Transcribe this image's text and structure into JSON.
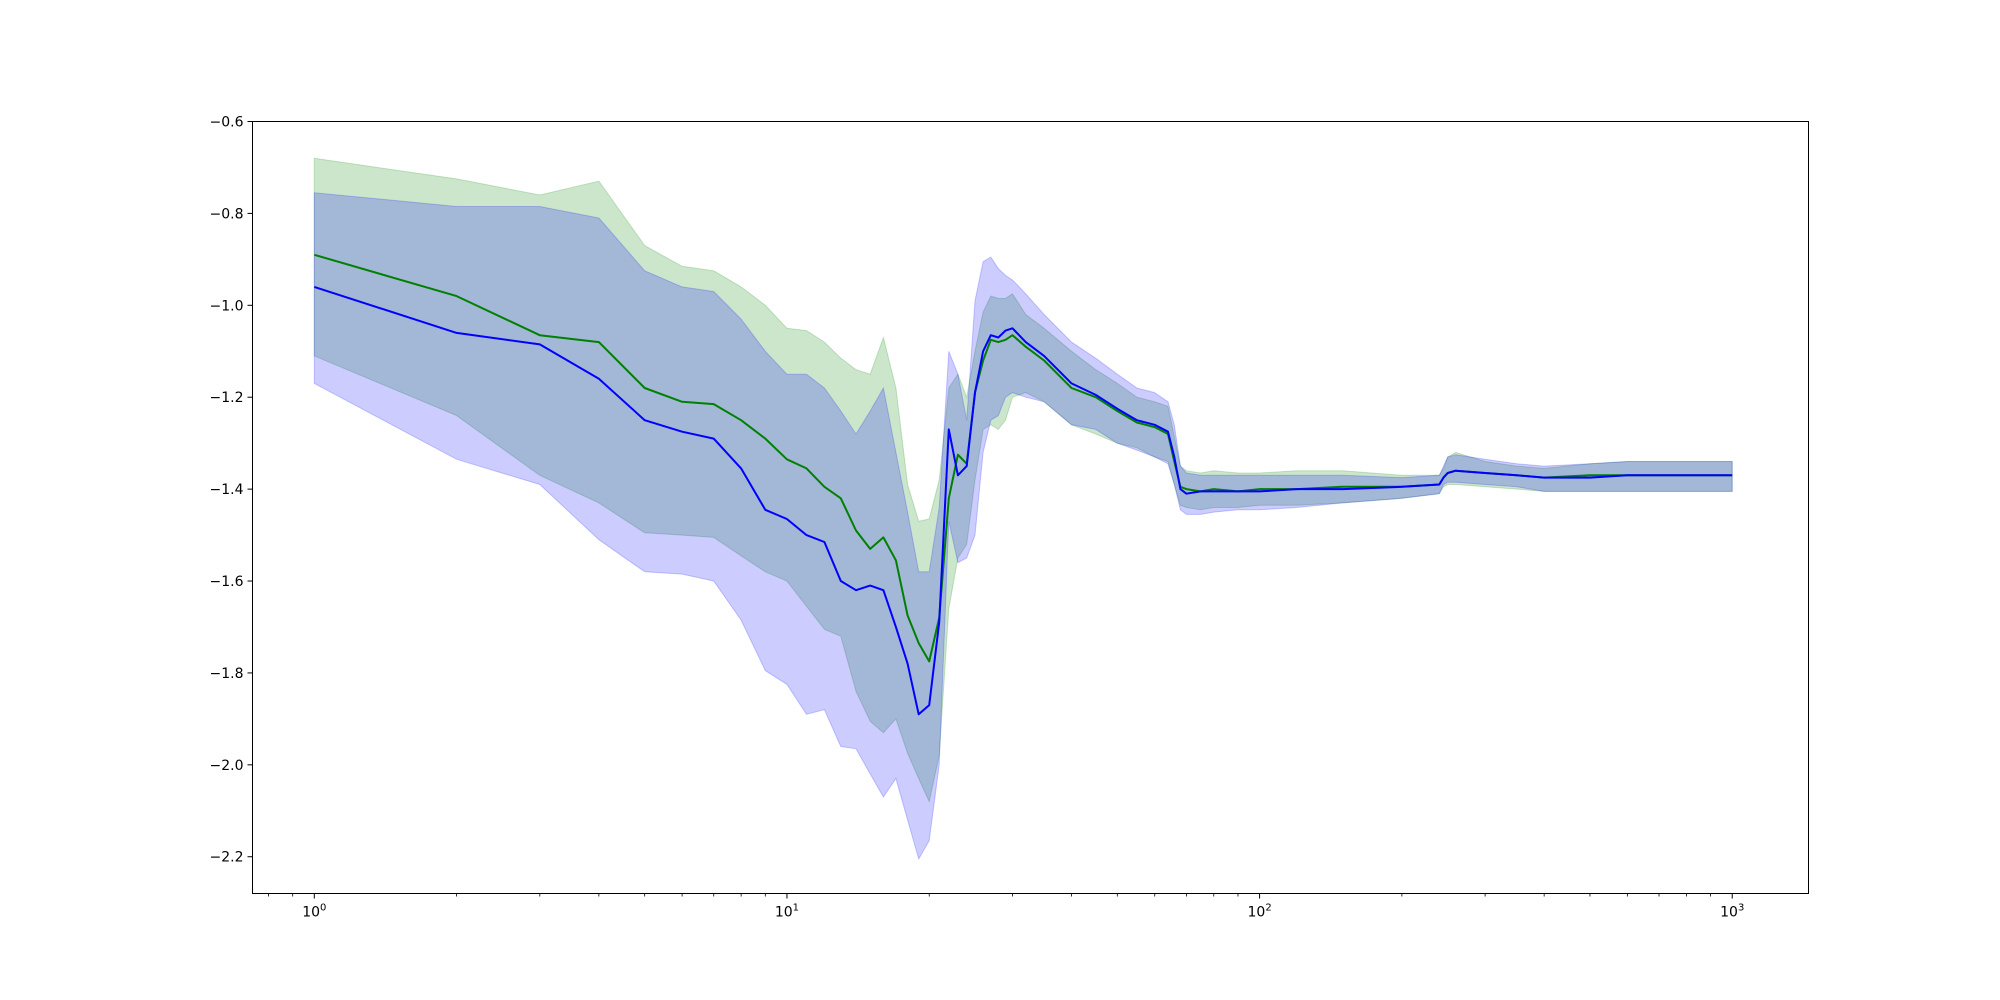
{
  "chart_data": {
    "type": "line",
    "xscale": "log",
    "xlim": [
      0.74,
      1450
    ],
    "ylim": [
      -2.28,
      -0.6
    ],
    "grid": false,
    "legend": "none",
    "x_ticks": [
      {
        "value": 1,
        "base": "10",
        "exp": "0"
      },
      {
        "value": 10,
        "base": "10",
        "exp": "1"
      },
      {
        "value": 100,
        "base": "10",
        "exp": "2"
      },
      {
        "value": 1000,
        "base": "10",
        "exp": "3"
      }
    ],
    "y_ticks": [
      {
        "value": -0.6,
        "label": "−0.6"
      },
      {
        "value": -0.8,
        "label": "−0.8"
      },
      {
        "value": -1.0,
        "label": "−1.0"
      },
      {
        "value": -1.2,
        "label": "−1.2"
      },
      {
        "value": -1.4,
        "label": "−1.4"
      },
      {
        "value": -1.6,
        "label": "−1.6"
      },
      {
        "value": -1.8,
        "label": "−1.8"
      },
      {
        "value": -2.0,
        "label": "−2.0"
      },
      {
        "value": -2.2,
        "label": "−2.2"
      }
    ],
    "series": [
      {
        "color": "#008000",
        "band_color": "#008000",
        "band_opacity": 0.2,
        "x": [
          1,
          2,
          3,
          4,
          5,
          6,
          7,
          8,
          9,
          10,
          11,
          12,
          13,
          14,
          15,
          16,
          17,
          18,
          19,
          20,
          21,
          22,
          23,
          24,
          25,
          26,
          27,
          28,
          29,
          30,
          32,
          35,
          40,
          45,
          50,
          55,
          60,
          64,
          66,
          68,
          70,
          75,
          80,
          90,
          100,
          120,
          150,
          200,
          240,
          245,
          250,
          260,
          300,
          350,
          400,
          500,
          600,
          700,
          800,
          1000
        ],
        "y": [
          -0.89,
          -0.98,
          -1.065,
          -1.08,
          -1.18,
          -1.21,
          -1.215,
          -1.25,
          -1.29,
          -1.335,
          -1.355,
          -1.395,
          -1.42,
          -1.49,
          -1.53,
          -1.505,
          -1.555,
          -1.675,
          -1.735,
          -1.775,
          -1.68,
          -1.42,
          -1.325,
          -1.345,
          -1.19,
          -1.12,
          -1.075,
          -1.08,
          -1.075,
          -1.065,
          -1.09,
          -1.12,
          -1.18,
          -1.2,
          -1.23,
          -1.255,
          -1.265,
          -1.28,
          -1.34,
          -1.395,
          -1.4,
          -1.405,
          -1.4,
          -1.405,
          -1.4,
          -1.4,
          -1.395,
          -1.395,
          -1.39,
          -1.375,
          -1.365,
          -1.36,
          -1.365,
          -1.37,
          -1.375,
          -1.37,
          -1.37,
          -1.37,
          -1.37,
          -1.37
        ],
        "upper": [
          -0.68,
          -0.725,
          -0.76,
          -0.73,
          -0.87,
          -0.915,
          -0.925,
          -0.96,
          -1.0,
          -1.05,
          -1.055,
          -1.08,
          -1.115,
          -1.14,
          -1.15,
          -1.07,
          -1.18,
          -1.39,
          -1.47,
          -1.465,
          -1.38,
          -1.18,
          -1.15,
          -1.2,
          -1.1,
          -1.015,
          -0.98,
          -0.985,
          -0.985,
          -0.975,
          -1.02,
          -1.05,
          -1.1,
          -1.14,
          -1.17,
          -1.2,
          -1.21,
          -1.22,
          -1.285,
          -1.35,
          -1.36,
          -1.365,
          -1.36,
          -1.365,
          -1.365,
          -1.36,
          -1.36,
          -1.37,
          -1.37,
          -1.355,
          -1.33,
          -1.32,
          -1.34,
          -1.35,
          -1.355,
          -1.345,
          -1.34,
          -1.34,
          -1.34,
          -1.34
        ],
        "lower": [
          -1.11,
          -1.24,
          -1.37,
          -1.43,
          -1.495,
          -1.5,
          -1.505,
          -1.545,
          -1.58,
          -1.6,
          -1.655,
          -1.705,
          -1.72,
          -1.84,
          -1.905,
          -1.93,
          -1.9,
          -1.975,
          -2.03,
          -2.08,
          -1.98,
          -1.66,
          -1.55,
          -1.52,
          -1.38,
          -1.27,
          -1.26,
          -1.27,
          -1.25,
          -1.2,
          -1.19,
          -1.21,
          -1.26,
          -1.28,
          -1.3,
          -1.31,
          -1.33,
          -1.34,
          -1.39,
          -1.435,
          -1.44,
          -1.445,
          -1.44,
          -1.44,
          -1.435,
          -1.435,
          -1.43,
          -1.42,
          -1.41,
          -1.395,
          -1.39,
          -1.39,
          -1.395,
          -1.4,
          -1.405,
          -1.405,
          -1.405,
          -1.405,
          -1.405,
          -1.405
        ]
      },
      {
        "color": "#0000ff",
        "band_color": "#0000ff",
        "band_opacity": 0.2,
        "x": [
          1,
          2,
          3,
          4,
          5,
          6,
          7,
          8,
          9,
          10,
          11,
          12,
          13,
          14,
          15,
          16,
          17,
          18,
          19,
          20,
          21,
          22,
          23,
          24,
          25,
          26,
          27,
          28,
          29,
          30,
          32,
          35,
          40,
          45,
          50,
          55,
          60,
          64,
          66,
          68,
          70,
          75,
          80,
          90,
          100,
          120,
          150,
          200,
          240,
          245,
          250,
          260,
          300,
          350,
          400,
          500,
          600,
          700,
          800,
          1000
        ],
        "y": [
          -0.96,
          -1.06,
          -1.085,
          -1.16,
          -1.25,
          -1.275,
          -1.29,
          -1.355,
          -1.445,
          -1.465,
          -1.5,
          -1.515,
          -1.6,
          -1.62,
          -1.61,
          -1.62,
          -1.7,
          -1.78,
          -1.89,
          -1.87,
          -1.69,
          -1.27,
          -1.37,
          -1.35,
          -1.19,
          -1.1,
          -1.065,
          -1.07,
          -1.055,
          -1.05,
          -1.08,
          -1.11,
          -1.17,
          -1.195,
          -1.225,
          -1.25,
          -1.26,
          -1.275,
          -1.33,
          -1.4,
          -1.41,
          -1.405,
          -1.405,
          -1.405,
          -1.405,
          -1.4,
          -1.4,
          -1.395,
          -1.39,
          -1.375,
          -1.365,
          -1.36,
          -1.365,
          -1.37,
          -1.375,
          -1.375,
          -1.37,
          -1.37,
          -1.37,
          -1.37
        ],
        "upper": [
          -0.755,
          -0.785,
          -0.785,
          -0.81,
          -0.925,
          -0.96,
          -0.97,
          -1.03,
          -1.1,
          -1.15,
          -1.15,
          -1.18,
          -1.23,
          -1.28,
          -1.23,
          -1.18,
          -1.32,
          -1.45,
          -1.58,
          -1.58,
          -1.44,
          -1.1,
          -1.15,
          -1.25,
          -0.99,
          -0.905,
          -0.895,
          -0.92,
          -0.935,
          -0.945,
          -0.975,
          -1.02,
          -1.08,
          -1.115,
          -1.15,
          -1.18,
          -1.19,
          -1.21,
          -1.26,
          -1.35,
          -1.365,
          -1.37,
          -1.37,
          -1.37,
          -1.37,
          -1.37,
          -1.37,
          -1.375,
          -1.37,
          -1.35,
          -1.33,
          -1.325,
          -1.335,
          -1.345,
          -1.35,
          -1.345,
          -1.34,
          -1.34,
          -1.34,
          -1.34
        ],
        "lower": [
          -1.17,
          -1.335,
          -1.39,
          -1.51,
          -1.58,
          -1.585,
          -1.6,
          -1.685,
          -1.795,
          -1.825,
          -1.89,
          -1.88,
          -1.96,
          -1.965,
          -2.02,
          -2.07,
          -2.03,
          -2.12,
          -2.205,
          -2.165,
          -2.0,
          -1.47,
          -1.56,
          -1.55,
          -1.5,
          -1.32,
          -1.25,
          -1.24,
          -1.2,
          -1.19,
          -1.2,
          -1.21,
          -1.26,
          -1.27,
          -1.3,
          -1.315,
          -1.33,
          -1.345,
          -1.39,
          -1.445,
          -1.455,
          -1.455,
          -1.45,
          -1.445,
          -1.445,
          -1.44,
          -1.43,
          -1.42,
          -1.41,
          -1.39,
          -1.385,
          -1.385,
          -1.39,
          -1.395,
          -1.405,
          -1.405,
          -1.405,
          -1.405,
          -1.405,
          -1.405
        ]
      }
    ]
  }
}
